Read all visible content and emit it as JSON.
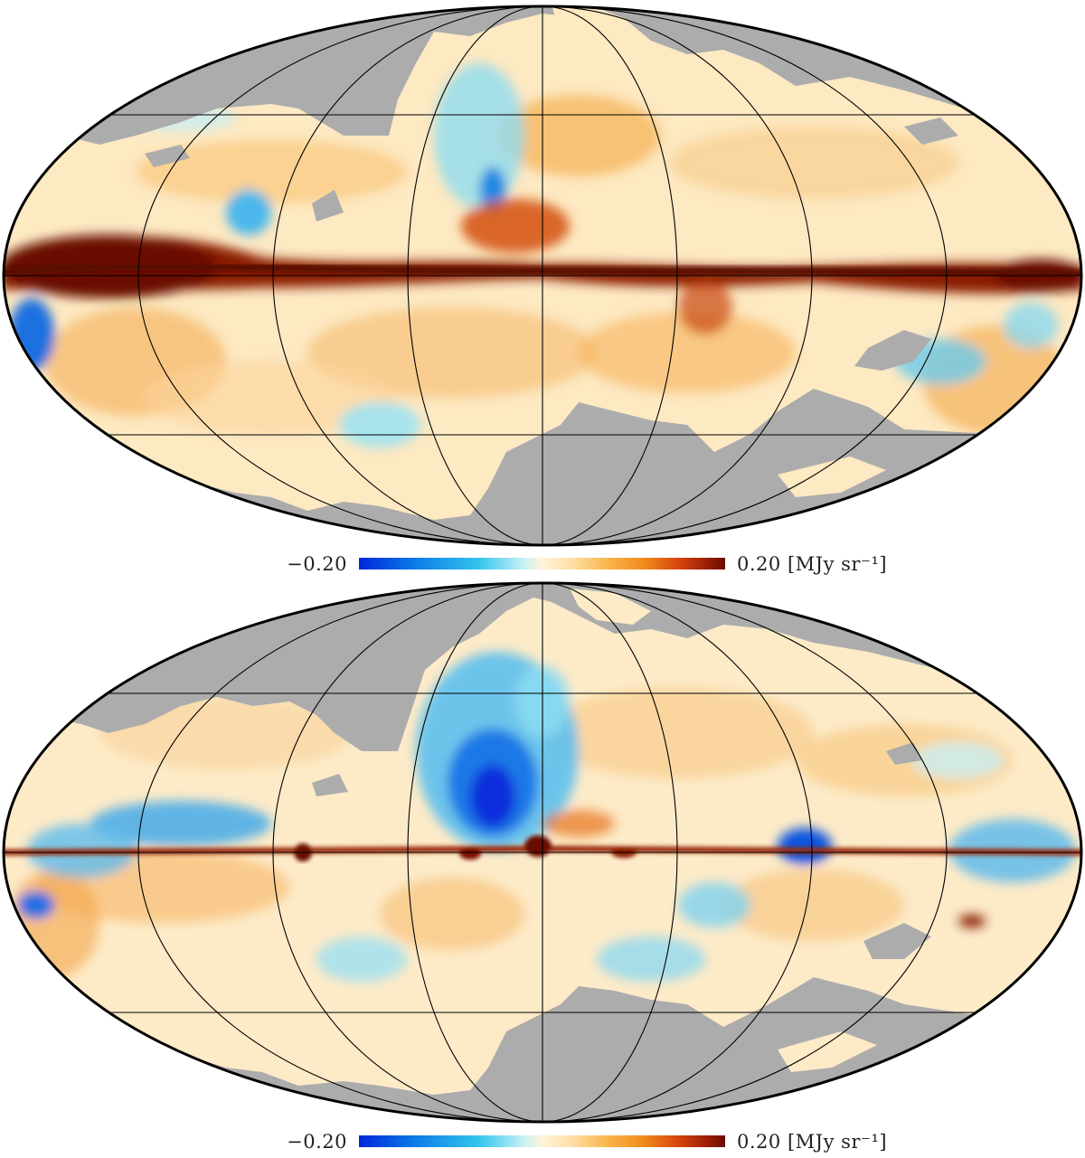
{
  "maps": [
    {
      "name": "top",
      "colorbar": {
        "min_label": "−0.20",
        "max_label": "0.20",
        "unit": "[MJy sr⁻¹]"
      }
    },
    {
      "name": "bottom",
      "colorbar": {
        "min_label": "−0.20",
        "max_label": "0.20",
        "unit": "[MJy sr⁻¹]"
      }
    }
  ],
  "projection": "mollweide",
  "colormap": [
    "#0026d9",
    "#0a7be8",
    "#35c6ee",
    "#c8f1f4",
    "#fff5dc",
    "#fde0a6",
    "#f9b54a",
    "#f08a1c",
    "#d8470c",
    "#9c1f06",
    "#6a0c00"
  ],
  "mask_color": "#acacac"
}
